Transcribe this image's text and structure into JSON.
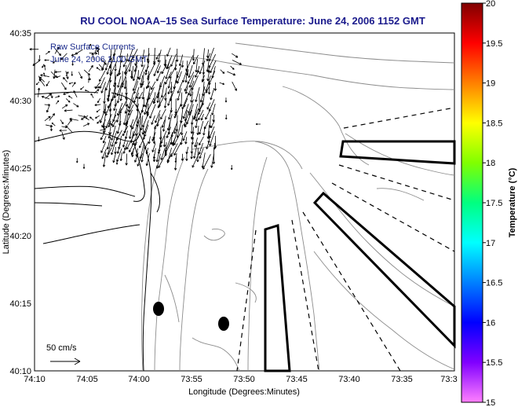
{
  "title": "RU COOL  NOAA–15  Sea Surface Temperature:  June 24, 2006 1152 GMT",
  "inset": {
    "line1": "Raw Surface Currents",
    "line2": "June 24, 2006 1100 GMT"
  },
  "scale": {
    "label": "50 cm/s"
  },
  "axes": {
    "xlabel": "Longitude (Degrees:Minutes)",
    "ylabel": "Latitude (Degrees:Minutes)",
    "xticks": [
      "74:10",
      "74:05",
      "74:00",
      "73:55",
      "73:50",
      "73:45",
      "73:40",
      "73:35",
      "73:3"
    ],
    "yticks": [
      "40:35",
      "40:30",
      "40:25",
      "40:20",
      "40:15",
      "40:10"
    ]
  },
  "colorbar": {
    "label": "Temperature (°C)",
    "ticks": [
      "20",
      "19.5",
      "19",
      "18.5",
      "18",
      "17.5",
      "17",
      "16.5",
      "16",
      "15.5",
      "15"
    ],
    "range": [
      15,
      20
    ],
    "colors": [
      "#ff80ff",
      "#8000ff",
      "#0000ff",
      "#0080ff",
      "#00ffff",
      "#00ff80",
      "#80ff00",
      "#ffff00",
      "#ff8000",
      "#ff0000",
      "#800000"
    ]
  }
}
